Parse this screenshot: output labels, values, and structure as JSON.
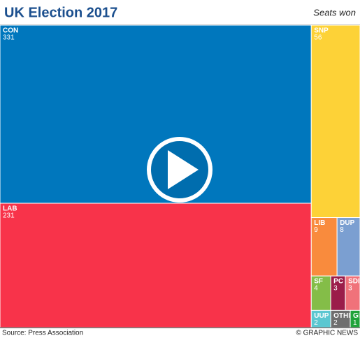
{
  "chart_data": {
    "type": "treemap",
    "title": "UK Election 2017",
    "subtitle": "Seats won",
    "categories": [
      "CON",
      "LAB",
      "SNP",
      "LIB",
      "DUP",
      "SF",
      "PC",
      "SDL",
      "UUP",
      "OTHE",
      "GR"
    ],
    "values": [
      331,
      231,
      56,
      9,
      8,
      4,
      3,
      3,
      2,
      2,
      1
    ],
    "colors": [
      "#0077bd",
      "#f8334a",
      "#fdd237",
      "#f98b3d",
      "#7b9fd1",
      "#84bd48",
      "#9b1d4a",
      "#f0727a",
      "#5bc7d1",
      "#6e6e6e",
      "#1fa33a"
    ],
    "source": "Source: Press Association",
    "credit": "© GRAPHIC NEWS"
  }
}
